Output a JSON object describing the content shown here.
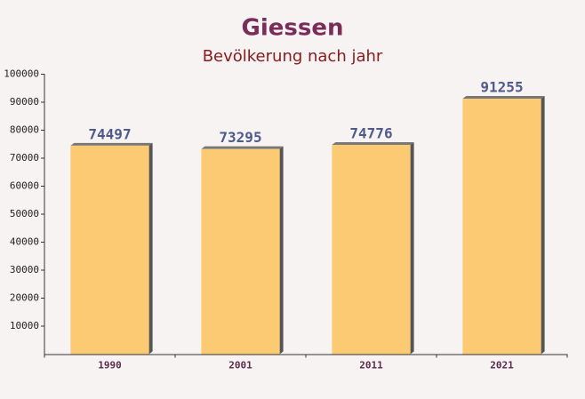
{
  "chart_data": {
    "type": "bar",
    "title": "Giessen",
    "subtitle": "Bevölkerung nach jahr",
    "categories": [
      "1990",
      "2001",
      "2011",
      "2021"
    ],
    "values": [
      74497,
      73295,
      74776,
      91255
    ],
    "color": "#fcc25a",
    "ylim": [
      0,
      100000
    ],
    "yticks": [
      10000,
      20000,
      30000,
      40000,
      50000,
      60000,
      70000,
      80000,
      90000,
      100000
    ]
  }
}
